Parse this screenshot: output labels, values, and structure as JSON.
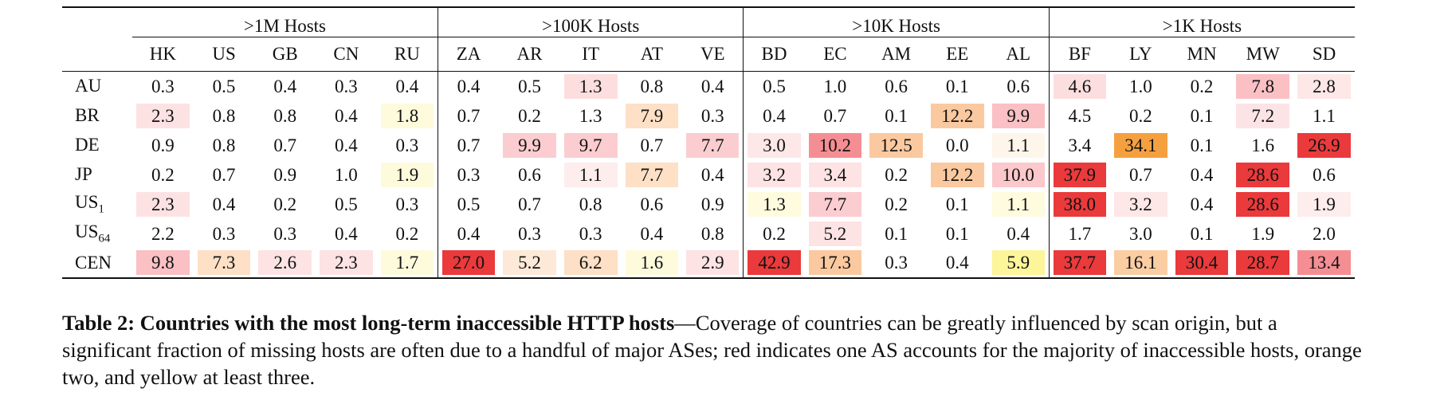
{
  "table": {
    "groups": [
      ">1M Hosts",
      ">100K Hosts",
      ">10K Hosts",
      ">1K Hosts"
    ],
    "columns": [
      "HK",
      "US",
      "GB",
      "CN",
      "RU",
      "ZA",
      "AR",
      "IT",
      "AT",
      "VE",
      "BD",
      "EC",
      "AM",
      "EE",
      "AL",
      "BF",
      "LY",
      "MN",
      "MW",
      "SD"
    ],
    "rows": [
      {
        "label": "AU",
        "sub": "",
        "values": [
          "0.3",
          "0.5",
          "0.4",
          "0.3",
          "0.4",
          "0.4",
          "0.5",
          "1.3",
          "0.8",
          "0.4",
          "0.5",
          "1.0",
          "0.6",
          "0.1",
          "0.6",
          "4.6",
          "1.0",
          "0.2",
          "7.8",
          "2.8"
        ],
        "colors": [
          "",
          "",
          "",
          "",
          "",
          "",
          "",
          "#fcdede",
          "",
          "",
          "",
          "",
          "",
          "",
          "",
          "#fcdede",
          "",
          "",
          "#fac0c4",
          "#fde7e7"
        ]
      },
      {
        "label": "BR",
        "sub": "",
        "values": [
          "2.3",
          "0.8",
          "0.8",
          "0.4",
          "1.8",
          "0.7",
          "0.2",
          "1.3",
          "7.9",
          "0.3",
          "0.4",
          "0.7",
          "0.1",
          "12.2",
          "9.9",
          "4.5",
          "0.2",
          "0.1",
          "7.2",
          "1.1"
        ],
        "colors": [
          "#fde2e4",
          "",
          "",
          "",
          "#fdfbdb",
          "",
          "",
          "",
          "#fde0c6",
          "",
          "",
          "",
          "",
          "#fbc9a0",
          "#fac0c4",
          "",
          "",
          "",
          "#fce4e6",
          ""
        ]
      },
      {
        "label": "DE",
        "sub": "",
        "values": [
          "0.9",
          "0.8",
          "0.7",
          "0.4",
          "0.3",
          "0.7",
          "9.9",
          "9.7",
          "0.7",
          "7.7",
          "3.0",
          "10.2",
          "12.5",
          "0.0",
          "1.1",
          "3.4",
          "34.1",
          "0.1",
          "1.6",
          "26.9"
        ],
        "colors": [
          "",
          "",
          "",
          "",
          "",
          "",
          "#fbcdd0",
          "#fbcdd0",
          "",
          "#fbcdd0",
          "#fde7e7",
          "#f58e93",
          "#fbc9a0",
          "",
          "#fef6eb",
          "",
          "#f5a040",
          "",
          "",
          "#ea3a3c"
        ]
      },
      {
        "label": "JP",
        "sub": "",
        "values": [
          "0.2",
          "0.7",
          "0.9",
          "1.0",
          "1.9",
          "0.3",
          "0.6",
          "1.1",
          "7.7",
          "0.4",
          "3.2",
          "3.4",
          "0.2",
          "12.2",
          "10.0",
          "37.9",
          "0.7",
          "0.4",
          "28.6",
          "0.6"
        ],
        "colors": [
          "",
          "",
          "",
          "",
          "#fdfbdb",
          "",
          "",
          "#fdeded",
          "#fde0c6",
          "",
          "#fde3e4",
          "#fde3e4",
          "",
          "#fbc9a0",
          "#fbc8cb",
          "#ea3a3c",
          "",
          "",
          "#ea3a3c",
          ""
        ]
      },
      {
        "label": "US",
        "sub": "1",
        "values": [
          "2.3",
          "0.4",
          "0.2",
          "0.5",
          "0.3",
          "0.5",
          "0.7",
          "0.8",
          "0.6",
          "0.9",
          "1.3",
          "7.7",
          "0.2",
          "0.1",
          "1.1",
          "38.0",
          "3.2",
          "0.4",
          "28.6",
          "1.9"
        ],
        "colors": [
          "#fde2e4",
          "",
          "",
          "",
          "",
          "",
          "",
          "",
          "",
          "",
          "#fefbdf",
          "#fbcdd0",
          "",
          "",
          "#fefbdf",
          "#ea3a3c",
          "#fde7e7",
          "",
          "#ea3a3c",
          "#fdeded"
        ]
      },
      {
        "label": "US",
        "sub": "64",
        "values": [
          "2.2",
          "0.3",
          "0.3",
          "0.4",
          "0.2",
          "0.4",
          "0.3",
          "0.3",
          "0.4",
          "0.8",
          "0.2",
          "5.2",
          "0.1",
          "0.1",
          "0.4",
          "1.7",
          "3.0",
          "0.1",
          "1.9",
          "2.0"
        ],
        "colors": [
          "",
          "",
          "",
          "",
          "",
          "",
          "",
          "",
          "",
          "",
          "",
          "#fde3e4",
          "",
          "",
          "",
          "",
          "",
          "",
          "",
          ""
        ]
      },
      {
        "label": "CEN",
        "sub": "",
        "values": [
          "9.8",
          "7.3",
          "2.6",
          "2.3",
          "1.7",
          "27.0",
          "5.2",
          "6.2",
          "1.6",
          "2.9",
          "42.9",
          "17.3",
          "0.3",
          "0.4",
          "5.9",
          "37.7",
          "16.1",
          "30.4",
          "28.7",
          "13.4"
        ],
        "colors": [
          "#fac0c4",
          "#fde0c6",
          "#fde3e4",
          "#fde3e4",
          "#fdfbdb",
          "#ea3a3c",
          "#fde9d8",
          "#fde0c6",
          "#fdfbdb",
          "#fde3e4",
          "#ea3a3c",
          "#fbc9a0",
          "",
          "",
          "#fcf59a",
          "#ea3a3c",
          "#fbcda3",
          "#ea3a3c",
          "#ea3a3c",
          "#f58e93"
        ]
      }
    ]
  },
  "caption": {
    "bold": "Table 2: Countries with the most long-term inaccessible HTTP hosts",
    "text": "—Coverage of countries can be greatly influenced by scan origin, but a significant fraction of missing hosts are often due to a handful of major ASes; red indicates one AS accounts for the majority of inaccessible hosts, orange two, and yellow at least three."
  }
}
